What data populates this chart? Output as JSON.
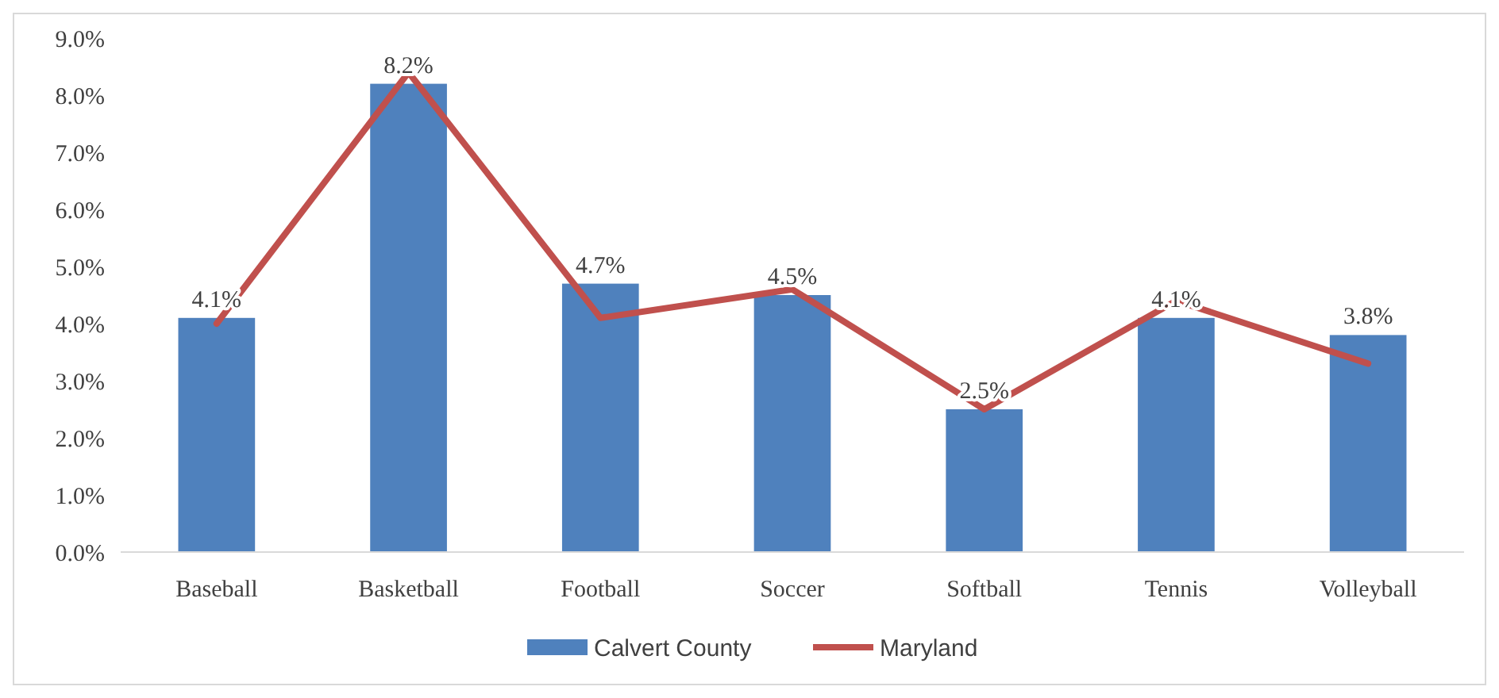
{
  "chart_data": {
    "type": "bar",
    "categories": [
      "Baseball",
      "Basketball",
      "Football",
      "Soccer",
      "Softball",
      "Tennis",
      "Volleyball"
    ],
    "series": [
      {
        "name": "Calvert County",
        "color": "#4f81bd",
        "values": [
          4.1,
          8.2,
          4.7,
          4.5,
          2.5,
          4.1,
          3.8
        ],
        "value_labels": [
          "4.1%",
          "8.2%",
          "4.7%",
          "4.5%",
          "2.5%",
          "4.1%",
          "3.8%"
        ]
      },
      {
        "name": "Maryland",
        "type": "line",
        "color": "#c0504d",
        "values": [
          4.0,
          8.4,
          4.1,
          4.6,
          2.5,
          4.4,
          3.3
        ]
      }
    ],
    "ylim": [
      0,
      9
    ],
    "yticks": [
      {
        "value": 0,
        "label": "0.0%"
      },
      {
        "value": 1,
        "label": "1.0%"
      },
      {
        "value": 2,
        "label": "2.0%"
      },
      {
        "value": 3,
        "label": "3.0%"
      },
      {
        "value": 4,
        "label": "4.0%"
      },
      {
        "value": 5,
        "label": "5.0%"
      },
      {
        "value": 6,
        "label": "6.0%"
      },
      {
        "value": 7,
        "label": "7.0%"
      },
      {
        "value": 8,
        "label": "8.0%"
      },
      {
        "value": 9,
        "label": "9.0%"
      }
    ],
    "legend": "bottom",
    "marker": "none",
    "line_style": "solid"
  }
}
